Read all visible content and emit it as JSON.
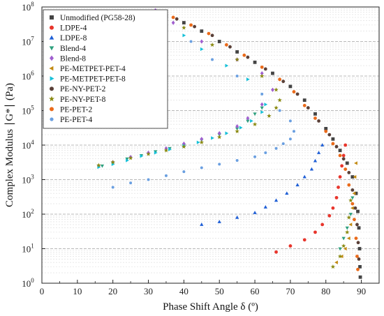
{
  "chart_data": {
    "type": "scatter",
    "xlabel": "Phase Shift Angle δ (º)",
    "ylabel": "Complex Modulus ∣G*∣ (Pa)",
    "xlim": [
      0,
      95
    ],
    "ylim": [
      1,
      100000000
    ],
    "yscale": "log",
    "x_ticks": [
      0,
      10,
      20,
      30,
      40,
      50,
      60,
      70,
      80,
      90
    ],
    "y_ticks": [
      {
        "value": 1,
        "label": "10",
        "exp": "0"
      },
      {
        "value": 10,
        "label": "10",
        "exp": "1"
      },
      {
        "value": 100,
        "label": "10",
        "exp": "2"
      },
      {
        "value": 1000,
        "label": "10",
        "exp": "3"
      },
      {
        "value": 10000,
        "label": "10",
        "exp": "4"
      },
      {
        "value": 100000,
        "label": "10",
        "exp": "5"
      },
      {
        "value": 1000000,
        "label": "10",
        "exp": "6"
      },
      {
        "value": 10000000,
        "label": "10",
        "exp": "7"
      },
      {
        "value": 100000000,
        "label": "10",
        "exp": "8"
      }
    ],
    "grid": "horizontal-dashed",
    "legend_position": "top-left",
    "series": [
      {
        "name": "Unmodified (PG58-28)",
        "color": "#444444",
        "marker": "square",
        "points": [
          [
            35,
            55000000.0
          ],
          [
            40,
            35000000.0
          ],
          [
            45,
            20000000.0
          ],
          [
            50,
            10000000.0
          ],
          [
            55,
            5000000.0
          ],
          [
            60,
            2500000.0
          ],
          [
            65,
            1200000.0
          ],
          [
            70,
            500000.0
          ],
          [
            74,
            200000.0
          ],
          [
            77,
            80000.0
          ],
          [
            80,
            30000.0
          ],
          [
            82,
            15000.0
          ],
          [
            84,
            7000.0
          ],
          [
            86,
            3000.0
          ],
          [
            87.5,
            1200.0
          ],
          [
            88.5,
            400
          ],
          [
            89,
            120
          ],
          [
            89.3,
            40
          ],
          [
            89.5,
            10
          ],
          [
            89.6,
            3
          ],
          [
            89.7,
            1.5
          ]
        ]
      },
      {
        "name": "LDPE-4",
        "color": "#e8352c",
        "marker": "circle",
        "points": [
          [
            66,
            8
          ],
          [
            70,
            12
          ],
          [
            74,
            18
          ],
          [
            77,
            30
          ],
          [
            79,
            50
          ],
          [
            81,
            90
          ],
          [
            82,
            150
          ],
          [
            83,
            300
          ],
          [
            83.5,
            600
          ],
          [
            84,
            1200
          ],
          [
            84.5,
            2500
          ],
          [
            85,
            5000.0
          ],
          [
            85.5,
            10000.0
          ]
        ]
      },
      {
        "name": "LDPE-8",
        "color": "#1f5fd6",
        "marker": "triangle-up",
        "points": [
          [
            45,
            50
          ],
          [
            50,
            60
          ],
          [
            55,
            80
          ],
          [
            60,
            110
          ],
          [
            63,
            160
          ],
          [
            66,
            250
          ],
          [
            69,
            400
          ],
          [
            72,
            700
          ],
          [
            74,
            1200
          ],
          [
            76,
            2000.0
          ],
          [
            77,
            3500.0
          ],
          [
            78,
            6000.0
          ],
          [
            79,
            10000.0
          ]
        ]
      },
      {
        "name": "Blend-4",
        "color": "#2ea07e",
        "marker": "triangle-down",
        "points": [
          [
            17,
            2500.0
          ],
          [
            20,
            3000.0
          ],
          [
            24,
            4000.0
          ],
          [
            28,
            5000.0
          ],
          [
            32,
            6500.0
          ],
          [
            36,
            8000.0
          ],
          [
            40,
            10000.0
          ],
          [
            45,
            14000.0
          ],
          [
            50,
            20000.0
          ],
          [
            55,
            30000.0
          ],
          [
            58,
            50000.0
          ],
          [
            60,
            80000.0
          ],
          [
            62,
            120000.0
          ],
          [
            84,
            10
          ],
          [
            85,
            20
          ],
          [
            86,
            40
          ],
          [
            87,
            100
          ],
          [
            87.5,
            300
          ]
        ]
      },
      {
        "name": "Blend-8",
        "color": "#a05fcf",
        "marker": "diamond",
        "points": [
          [
            16,
            2500.0
          ],
          [
            20,
            3200.0
          ],
          [
            25,
            4500.0
          ],
          [
            30,
            6000.0
          ],
          [
            35,
            8000.0
          ],
          [
            40,
            11000.0
          ],
          [
            45,
            15000.0
          ],
          [
            50,
            22000.0
          ],
          [
            55,
            35000.0
          ],
          [
            58,
            60000.0
          ],
          [
            62,
            150000.0
          ],
          [
            65,
            400000.0
          ],
          [
            62,
            1200000.0
          ],
          [
            55,
            3000000.0
          ],
          [
            45,
            10000000.0
          ],
          [
            37,
            35000000.0
          ],
          [
            32,
            80000000.0
          ]
        ]
      },
      {
        "name": "PE-METPET-PET-4",
        "color": "#c28a12",
        "marker": "triangle-left",
        "points": [
          [
            83,
            4
          ],
          [
            84.5,
            6
          ],
          [
            85.5,
            10
          ],
          [
            86.5,
            20
          ],
          [
            87,
            50
          ],
          [
            87.5,
            150
          ],
          [
            88,
            400
          ],
          [
            88.2,
            1200
          ],
          [
            88.5,
            3000.0
          ]
        ]
      },
      {
        "name": "PE-METPET-PET-8",
        "color": "#16c0d8",
        "marker": "triangle-right",
        "points": [
          [
            16,
            2300.0
          ],
          [
            20,
            2800.0
          ],
          [
            24,
            3600.0
          ],
          [
            28,
            4800.0
          ],
          [
            32,
            6000.0
          ],
          [
            36,
            7500.0
          ],
          [
            40,
            9500.0
          ],
          [
            44,
            12000.0
          ],
          [
            48,
            16000.0
          ],
          [
            52,
            22000.0
          ],
          [
            56,
            32000.0
          ],
          [
            59,
            50000.0
          ],
          [
            62,
            90000.0
          ],
          [
            63,
            150000.0
          ],
          [
            62,
            300000.0
          ],
          [
            58,
            800000.0
          ],
          [
            52,
            2000000.0
          ],
          [
            45,
            6000000.0
          ],
          [
            40,
            15000000.0
          ]
        ]
      },
      {
        "name": "PE-NY-PET-2",
        "color": "#5a4038",
        "marker": "circle",
        "points": [
          [
            38,
            45000000.0
          ],
          [
            43,
            27000000.0
          ],
          [
            48,
            15000000.0
          ],
          [
            53,
            7000000.0
          ],
          [
            58,
            3500000.0
          ],
          [
            63,
            1600000.0
          ],
          [
            68,
            700000.0
          ],
          [
            72,
            300000.0
          ],
          [
            75,
            120000.0
          ],
          [
            78,
            50000.0
          ],
          [
            81,
            20000.0
          ],
          [
            83,
            9000.0
          ],
          [
            85,
            4000.0
          ],
          [
            86.5,
            1600.0
          ],
          [
            87.5,
            500
          ],
          [
            88.3,
            150
          ],
          [
            88.8,
            50
          ],
          [
            89.1,
            15
          ],
          [
            89.3,
            5
          ]
        ]
      },
      {
        "name": "PE-NY-PET-8",
        "color": "#8a8a12",
        "marker": "star",
        "points": [
          [
            16,
            2600.0
          ],
          [
            20,
            3200.0
          ],
          [
            25,
            4200.0
          ],
          [
            30,
            5500.0
          ],
          [
            35,
            7000.0
          ],
          [
            40,
            9000.0
          ],
          [
            45,
            12000.0
          ],
          [
            50,
            17000.0
          ],
          [
            55,
            25000.0
          ],
          [
            60,
            40000.0
          ],
          [
            64,
            70000.0
          ],
          [
            66,
            120000.0
          ],
          [
            67,
            200000.0
          ],
          [
            66,
            400000.0
          ],
          [
            62,
            1000000.0
          ],
          [
            55,
            3000000.0
          ],
          [
            48,
            8000000.0
          ],
          [
            40,
            25000000.0
          ],
          [
            82,
            3
          ],
          [
            84,
            6
          ],
          [
            85,
            12
          ],
          [
            86,
            30
          ],
          [
            86.5,
            80
          ],
          [
            87,
            250
          ]
        ]
      },
      {
        "name": "PE-PET-2",
        "color": "#ea6a1a",
        "marker": "circle",
        "points": [
          [
            37,
            50000000.0
          ],
          [
            42,
            30000000.0
          ],
          [
            47,
            17000000.0
          ],
          [
            52,
            8000000.0
          ],
          [
            57,
            4000000.0
          ],
          [
            62,
            1800000.0
          ],
          [
            67,
            800000.0
          ],
          [
            71,
            350000.0
          ],
          [
            74,
            140000.0
          ],
          [
            77,
            60000.0
          ],
          [
            80,
            25000.0
          ],
          [
            82,
            11000.0
          ],
          [
            84,
            5000.0
          ],
          [
            85.5,
            2000.0
          ],
          [
            86.5,
            700
          ],
          [
            87.5,
            200
          ],
          [
            88,
            70
          ],
          [
            88.5,
            20
          ],
          [
            88.8,
            6
          ],
          [
            89,
            2.5
          ]
        ]
      },
      {
        "name": "PE-PET-4",
        "color": "#6a9fe0",
        "marker": "circle-hollow",
        "points": [
          [
            20,
            600
          ],
          [
            25,
            800
          ],
          [
            30,
            1000.0
          ],
          [
            35,
            1300.0
          ],
          [
            40,
            1700.0
          ],
          [
            45,
            2200.0
          ],
          [
            50,
            2800.0
          ],
          [
            55,
            3600.0
          ],
          [
            60,
            4600.0
          ],
          [
            63,
            6000.0
          ],
          [
            66,
            8000.0
          ],
          [
            68,
            11000.0
          ],
          [
            70,
            15000.0
          ],
          [
            71,
            25000.0
          ],
          [
            70,
            50000.0
          ],
          [
            67,
            100000.0
          ],
          [
            62,
            300000.0
          ],
          [
            55,
            1000000.0
          ],
          [
            48,
            3000000.0
          ],
          [
            42,
            10000000.0
          ]
        ]
      }
    ]
  }
}
